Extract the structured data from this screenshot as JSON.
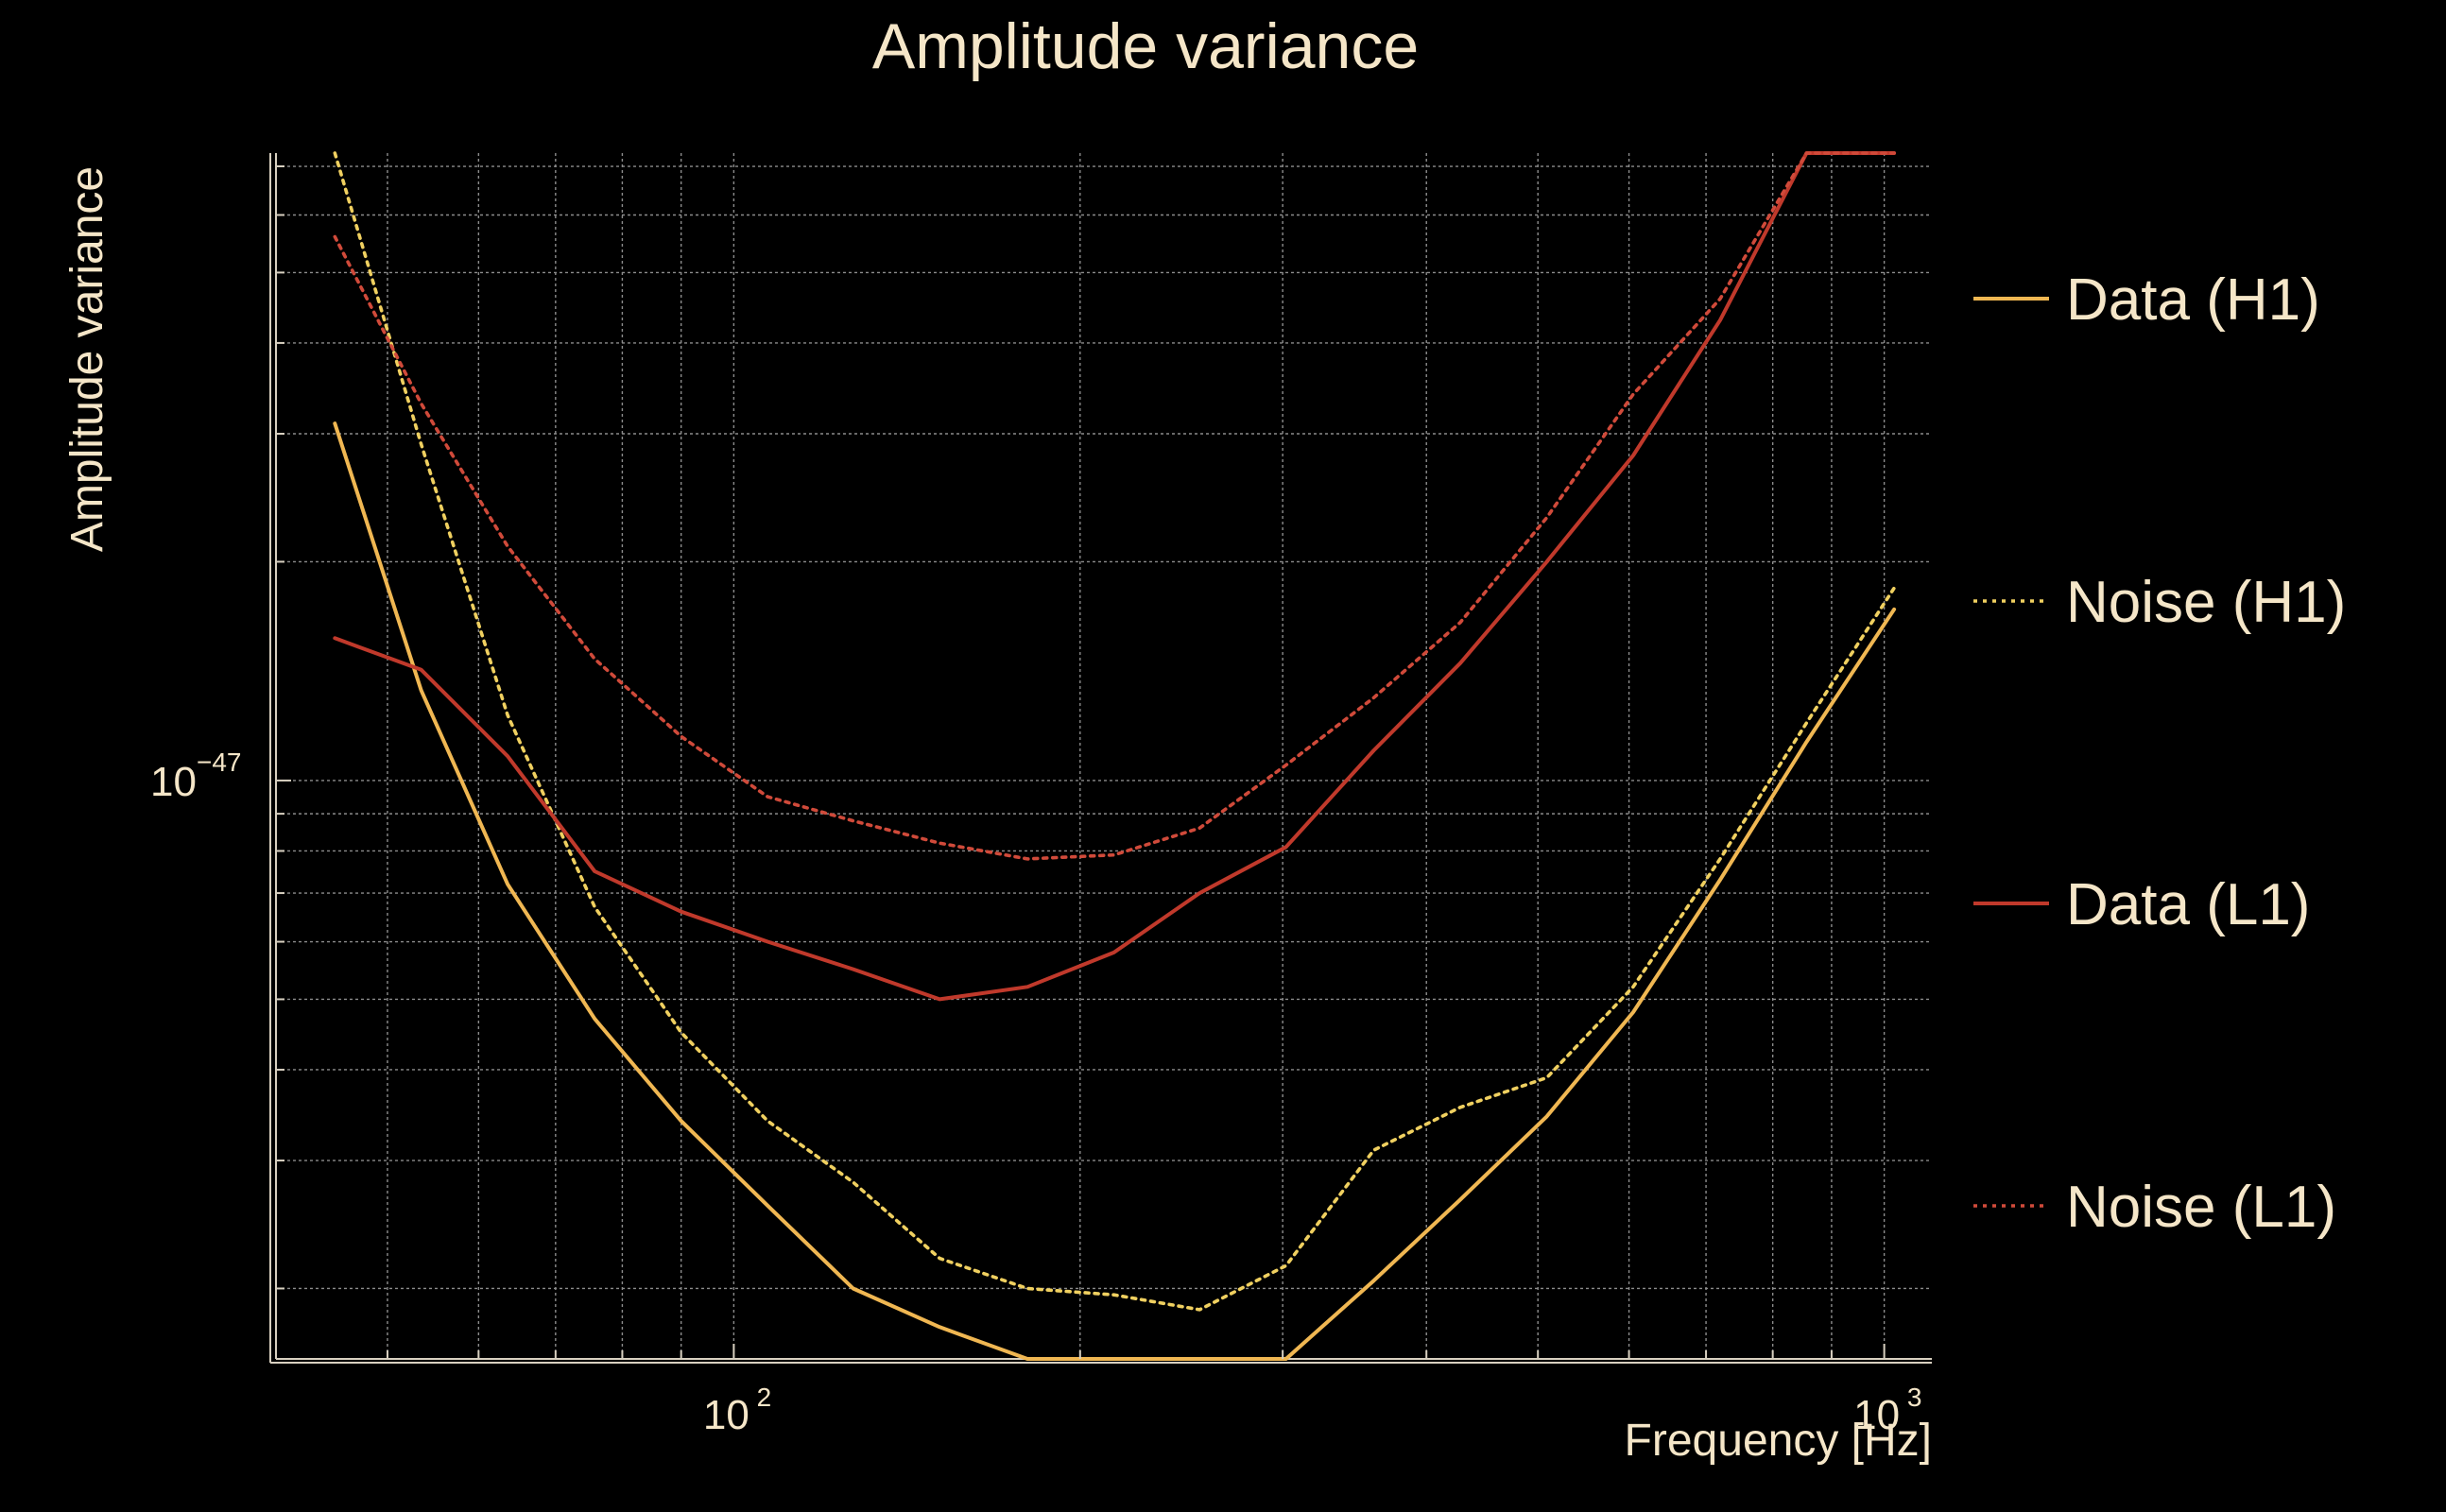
{
  "chart_data": {
    "type": "line",
    "title": "Amplitude variance",
    "xlabel": "Frequency [Hz]",
    "ylabel": "Amplitude variance",
    "xscale": "log",
    "yscale": "log",
    "xlim": [
      40,
      1100
    ],
    "ylim": [
      1.6e-48,
      7.3e-47
    ],
    "x_ticks": [
      {
        "base": "10",
        "exp": "2"
      },
      {
        "base": "10",
        "exp": "3"
      }
    ],
    "y_ticks": [
      {
        "base": "10",
        "exp": "−47"
      }
    ],
    "grid": true,
    "legend_position": "right",
    "series": [
      {
        "name": "Data (H1)",
        "color": "#f0b752",
        "style": "solid",
        "x": [
          45,
          53.5,
          63.6,
          75.7,
          90,
          107,
          127,
          151,
          180,
          214,
          254,
          302,
          360,
          428,
          509,
          605,
          720,
          856,
          1020
        ],
        "y": [
          3.1e-47,
          1.33e-47,
          7.2e-48,
          4.7e-48,
          3.4e-48,
          2.6e-48,
          2e-48,
          1.77e-48,
          1.6e-48,
          1.58e-48,
          1.54e-48,
          1.6e-48,
          2.05e-48,
          2.65e-48,
          3.45e-48,
          4.8e-48,
          7.3e-48,
          1.13e-47,
          1.72e-47
        ]
      },
      {
        "name": "Noise (H1)",
        "color": "#f0d060",
        "style": "dotted",
        "x": [
          45,
          53.5,
          63.6,
          75.7,
          90,
          107,
          127,
          151,
          180,
          214,
          254,
          302,
          360,
          428,
          509,
          605,
          720,
          856,
          1020
        ],
        "y": [
          7.3e-47,
          2.9e-47,
          1.23e-47,
          6.7e-48,
          4.5e-48,
          3.4e-48,
          2.8e-48,
          2.2e-48,
          2e-48,
          1.96e-48,
          1.87e-48,
          2.15e-48,
          3.1e-48,
          3.55e-48,
          3.9e-48,
          5.2e-48,
          7.8e-48,
          1.2e-47,
          1.84e-47
        ]
      },
      {
        "name": "Data (L1)",
        "color": "#c0392b",
        "style": "solid",
        "x": [
          45,
          53.5,
          63.6,
          75.7,
          90,
          107,
          127,
          151,
          180,
          214,
          254,
          302,
          360,
          428,
          509,
          605,
          720,
          856,
          1020
        ],
        "y": [
          1.57e-47,
          1.42e-47,
          1.08e-47,
          7.5e-48,
          6.6e-48,
          6e-48,
          5.5e-48,
          5e-48,
          5.2e-48,
          5.8e-48,
          7e-48,
          8.1e-48,
          1.1e-47,
          1.45e-47,
          2e-47,
          2.8e-47,
          4.3e-47,
          7.3e-47,
          7.3e-47
        ]
      },
      {
        "name": "Noise (L1)",
        "color": "#d04a3a",
        "style": "dotted",
        "x": [
          45,
          53.5,
          63.6,
          75.7,
          90,
          107,
          127,
          151,
          180,
          214,
          254,
          302,
          360,
          428,
          509,
          605,
          720,
          856,
          1020
        ],
        "y": [
          5.6e-47,
          3.3e-47,
          2.1e-47,
          1.47e-47,
          1.15e-47,
          9.5e-48,
          8.8e-48,
          8.2e-48,
          7.8e-48,
          7.9e-48,
          8.6e-48,
          1.05e-47,
          1.3e-47,
          1.65e-47,
          2.3e-47,
          3.4e-47,
          4.6e-47,
          7.3e-47,
          7.3e-47
        ]
      }
    ]
  }
}
